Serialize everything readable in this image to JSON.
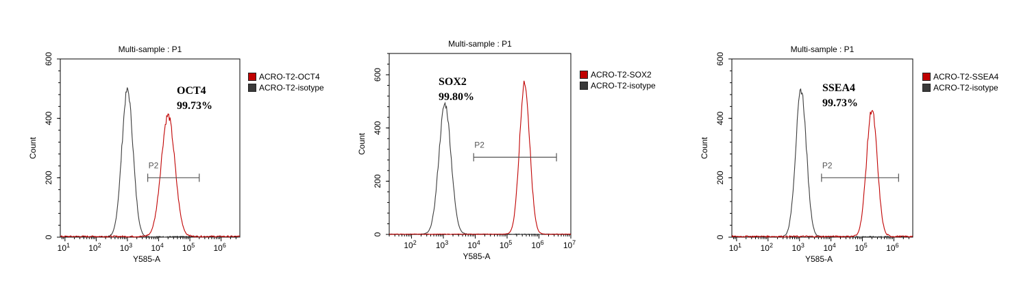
{
  "colors": {
    "sample": "#c00000",
    "isotype": "#3a3a3a",
    "gate": "#555555"
  },
  "chart_data": [
    {
      "type": "line",
      "title": "Multi-sample : P1",
      "xlabel": "Y585-A",
      "ylabel": "Count",
      "xscale": "log",
      "xlim_log10": [
        0.85,
        6.6
      ],
      "ylim": [
        0,
        600
      ],
      "x_ticks": [
        {
          "b": "10",
          "e": "1",
          "v": 1
        },
        {
          "b": "10",
          "e": "2",
          "v": 2
        },
        {
          "b": "10",
          "e": "3",
          "v": 3
        },
        {
          "b": "10",
          "e": "4",
          "v": 4
        },
        {
          "b": "10",
          "e": "5",
          "v": 5
        },
        {
          "b": "10",
          "e": "6",
          "v": 6
        }
      ],
      "y_ticks": [
        0,
        200,
        400,
        600
      ],
      "marker": "OCT4",
      "percent": "99.73%",
      "gate": {
        "label": "P2",
        "x_start_log10": 3.65,
        "x_end_log10": 5.3,
        "y": 200
      },
      "series": [
        {
          "name": "ACRO-T2-OCT4",
          "color": "#c00000",
          "peaks": [
            {
              "x_log10": 4.3,
              "sd": 0.22,
              "h": 410
            }
          ],
          "floor": 8
        },
        {
          "name": "ACRO-T2-isotype",
          "color": "#3a3a3a",
          "peaks": [
            {
              "x_log10": 3.0,
              "sd": 0.18,
              "h": 495
            }
          ],
          "floor": 5
        }
      ]
    },
    {
      "type": "line",
      "title": "Multi-sample : P1",
      "xlabel": "Y585-A",
      "ylabel": "Count",
      "xscale": "log",
      "xlim_log10": [
        1.3,
        7.0
      ],
      "ylim": [
        0,
        680
      ],
      "x_ticks": [
        {
          "b": "10",
          "e": "2",
          "v": 2
        },
        {
          "b": "10",
          "e": "3",
          "v": 3
        },
        {
          "b": "10",
          "e": "4",
          "v": 4
        },
        {
          "b": "10",
          "e": "5",
          "v": 5
        },
        {
          "b": "10",
          "e": "6",
          "v": 6
        },
        {
          "b": "10",
          "e": "7",
          "v": 7
        }
      ],
      "y_ticks": [
        0,
        200,
        400,
        600
      ],
      "marker": "SOX2",
      "percent": "99.80%",
      "gate": {
        "label": "P2",
        "x_start_log10": 3.95,
        "x_end_log10": 6.55,
        "y": 290
      },
      "series": [
        {
          "name": "ACRO-T2-SOX2",
          "color": "#c00000",
          "peaks": [
            {
              "x_log10": 5.55,
              "sd": 0.16,
              "h": 570
            }
          ],
          "floor": 3
        },
        {
          "name": "ACRO-T2-isotype",
          "color": "#3a3a3a",
          "peaks": [
            {
              "x_log10": 3.05,
              "sd": 0.19,
              "h": 490
            }
          ],
          "floor": 3
        }
      ]
    },
    {
      "type": "line",
      "title": "Multi-sample : P1",
      "xlabel": "Y585-A",
      "ylabel": "Count",
      "xscale": "log",
      "xlim_log10": [
        0.85,
        6.6
      ],
      "ylim": [
        0,
        600
      ],
      "x_ticks": [
        {
          "b": "10",
          "e": "1",
          "v": 1
        },
        {
          "b": "10",
          "e": "2",
          "v": 2
        },
        {
          "b": "10",
          "e": "3",
          "v": 3
        },
        {
          "b": "10",
          "e": "4",
          "v": 4
        },
        {
          "b": "10",
          "e": "5",
          "v": 5
        },
        {
          "b": "10",
          "e": "6",
          "v": 6
        }
      ],
      "y_ticks": [
        0,
        200,
        400,
        600
      ],
      "marker": "SSEA4",
      "percent": "99.73%",
      "gate": {
        "label": "P2",
        "x_start_log10": 3.7,
        "x_end_log10": 6.15,
        "y": 200
      },
      "series": [
        {
          "name": "ACRO-T2-SSEA4",
          "color": "#c00000",
          "peaks": [
            {
              "x_log10": 5.3,
              "sd": 0.17,
              "h": 430
            }
          ],
          "floor": 8
        },
        {
          "name": "ACRO-T2-isotype",
          "color": "#3a3a3a",
          "peaks": [
            {
              "x_log10": 3.05,
              "sd": 0.17,
              "h": 495
            }
          ],
          "floor": 5
        }
      ]
    }
  ]
}
